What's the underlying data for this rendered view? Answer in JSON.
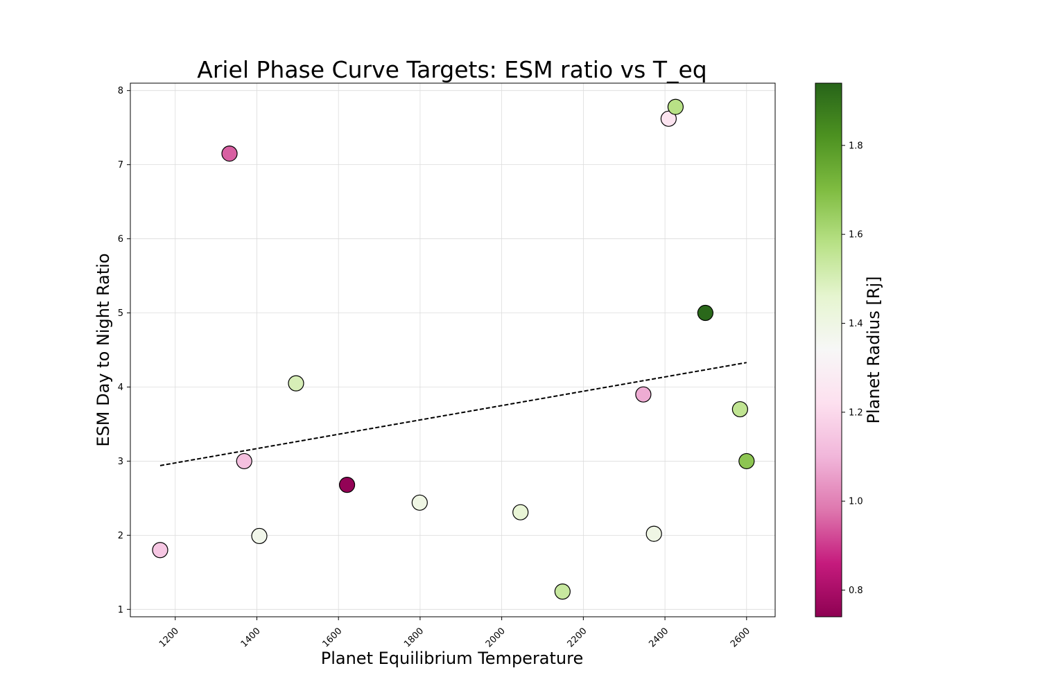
{
  "chart_data": {
    "type": "scatter",
    "title": "Ariel Phase Curve Targets: ESM ratio vs T_eq",
    "xlabel": "Planet Equilibrium Temperature",
    "ylabel": "ESM Day to Night Ratio",
    "xlim": [
      1090,
      2670
    ],
    "ylim": [
      0.9,
      8.1
    ],
    "xticks": [
      1200,
      1400,
      1600,
      1800,
      2000,
      2200,
      2400,
      2600
    ],
    "yticks": [
      1,
      2,
      3,
      4,
      5,
      6,
      7,
      8
    ],
    "grid": true,
    "points": [
      {
        "x": 1163,
        "y": 1.8,
        "radius": 1.15
      },
      {
        "x": 1333,
        "y": 7.15,
        "radius": 0.95
      },
      {
        "x": 1369,
        "y": 3.0,
        "radius": 1.13
      },
      {
        "x": 1406,
        "y": 1.99,
        "radius": 1.38
      },
      {
        "x": 1496,
        "y": 4.05,
        "radius": 1.5
      },
      {
        "x": 1621,
        "y": 2.68,
        "radius": 0.75
      },
      {
        "x": 1799,
        "y": 2.44,
        "radius": 1.4
      },
      {
        "x": 2046,
        "y": 2.31,
        "radius": 1.44
      },
      {
        "x": 2149,
        "y": 1.24,
        "radius": 1.54
      },
      {
        "x": 2347,
        "y": 3.9,
        "radius": 1.08
      },
      {
        "x": 2373,
        "y": 2.02,
        "radius": 1.4
      },
      {
        "x": 2409,
        "y": 7.62,
        "radius": 1.24
      },
      {
        "x": 2426,
        "y": 7.78,
        "radius": 1.58
      },
      {
        "x": 2499,
        "y": 5.0,
        "radius": 1.93
      },
      {
        "x": 2584,
        "y": 3.7,
        "radius": 1.56
      },
      {
        "x": 2600,
        "y": 3.0,
        "radius": 1.67
      }
    ],
    "trendline": {
      "style": "dashed",
      "x": [
        1163,
        2600
      ],
      "y": [
        2.94,
        4.33
      ]
    },
    "colorbar": {
      "label": "Planet Radius [Rj]",
      "colormap": "PiYG",
      "range": [
        0.74,
        1.94
      ],
      "ticks": [
        0.8,
        1.0,
        1.2,
        1.4,
        1.6,
        1.8
      ],
      "tick_labels": [
        "0.8",
        "1.0",
        "1.2",
        "1.4",
        "1.6",
        "1.8"
      ],
      "stops": [
        "#8e0152",
        "#c51b7d",
        "#de77ae",
        "#f1b6da",
        "#fde0ef",
        "#f7f7f7",
        "#e6f5d0",
        "#b8e186",
        "#7fbc41",
        "#4d9221",
        "#276419"
      ]
    }
  }
}
